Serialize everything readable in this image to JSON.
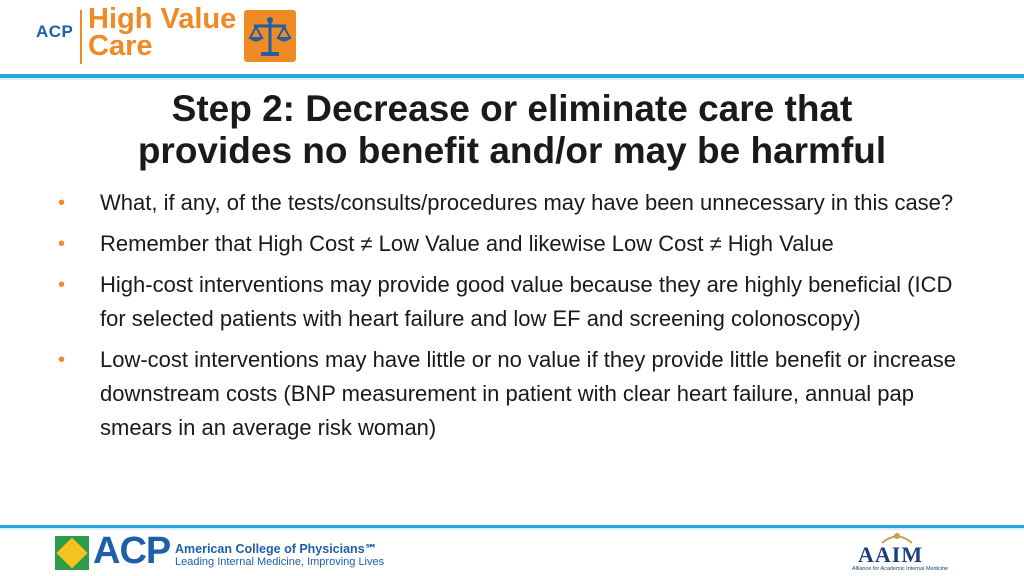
{
  "header": {
    "logo_acp": "ACP",
    "logo_line1": "High Value",
    "logo_line2": "Care",
    "brand_color": "#f08a24",
    "rule_color": "#2aa5dc"
  },
  "title": {
    "line1": "Step 2: Decrease or eliminate care that",
    "line2": "provides no benefit and/or may be harmful"
  },
  "bullets": [
    "What, if any, of the tests/consults/procedures may have been unnecessary in this case?",
    "Remember that High Cost ≠ Low Value and likewise Low Cost ≠ High Value",
    "High-cost interventions may provide good value because they are highly beneficial  (ICD for selected patients with heart failure and low EF and screening colonoscopy)",
    "Low-cost interventions may have little or no value if they provide little benefit or increase downstream costs (BNP measurement in patient with clear heart failure, annual pap smears in an average risk woman)"
  ],
  "bullet_symbol": "•",
  "footer": {
    "acp_letters": "ACP",
    "acp_name": "American College of Physicians℠",
    "acp_tagline": "Leading Internal Medicine, Improving Lives",
    "aaim_letters": "AAIM",
    "aaim_tagline": "Alliance for Academic Internal Medicine"
  }
}
